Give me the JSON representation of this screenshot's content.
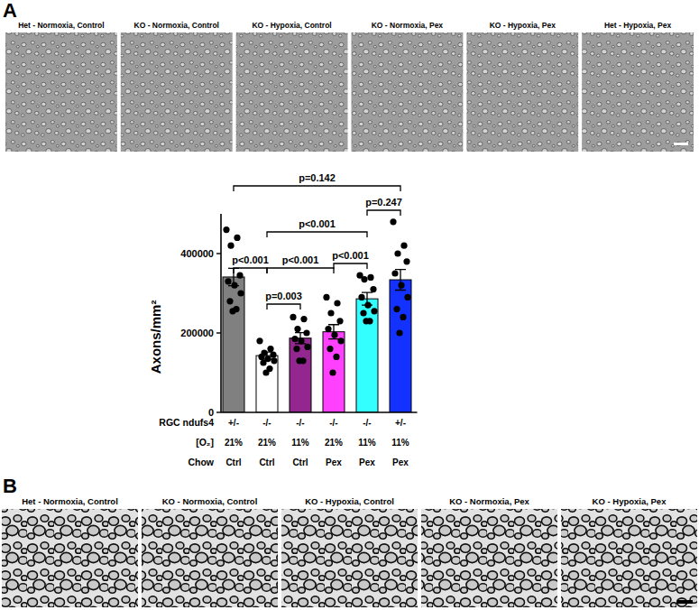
{
  "panel_a": {
    "label": "A",
    "image_titles": [
      "Het - Normoxia, Control",
      "KO - Normoxia, Control",
      "KO - Hypoxia, Control",
      "KO - Normoxia, Pex",
      "KO - Hypoxia, Pex",
      "Het - Hypoxia, Pex"
    ]
  },
  "chart_data": {
    "type": "bar",
    "y_label": "Axons/mm²",
    "categories": [
      null,
      null,
      null,
      null,
      null,
      null
    ],
    "values": [
      341000,
      143000,
      187000,
      203000,
      286000,
      334000
    ],
    "errors": [
      22000,
      9000,
      14000,
      18000,
      16000,
      26000
    ],
    "colors": [
      "#808080",
      "#ffffff",
      "#93278f",
      "#ff40ff",
      "#33ffff",
      "#1432ff"
    ],
    "points": [
      [
        460000,
        440000,
        420000,
        345000,
        330000,
        320000,
        300000,
        280000,
        260000,
        255000
      ],
      [
        180000,
        160000,
        150000,
        145000,
        140000,
        135000,
        130000,
        125000,
        110000,
        100000
      ],
      [
        240000,
        235000,
        210000,
        200000,
        185000,
        180000,
        165000,
        160000,
        130000,
        130000
      ],
      [
        290000,
        275000,
        250000,
        230000,
        210000,
        195000,
        180000,
        160000,
        140000,
        100000
      ],
      [
        345000,
        340000,
        335000,
        310000,
        290000,
        270000,
        255000,
        250000,
        230000,
        230000
      ],
      [
        480000,
        420000,
        400000,
        380000,
        350000,
        320000,
        290000,
        260000,
        240000,
        200000
      ]
    ],
    "ylim": [
      0,
      500000
    ],
    "yticks": [
      0,
      200000,
      400000
    ],
    "condition_table": [
      {
        "label": "RGC ndufs4",
        "values": [
          "+/-",
          "-/-",
          "-/-",
          "-/-",
          "-/-",
          "+/-"
        ]
      },
      {
        "label": "[O₂]",
        "values": [
          "21%",
          "21%",
          "11%",
          "21%",
          "11%",
          "11%"
        ]
      },
      {
        "label": "Chow",
        "values": [
          "Ctrl",
          "Ctrl",
          "Ctrl",
          "Pex",
          "Pex",
          "Pex"
        ]
      }
    ],
    "comparisons": [
      {
        "groups": [
          0,
          5
        ],
        "label": "p=0.142"
      },
      {
        "groups": [
          4,
          5
        ],
        "label": "p=0.247"
      },
      {
        "groups": [
          1,
          4
        ],
        "label": "p<0.001"
      },
      {
        "groups": [
          0,
          1
        ],
        "label": "p<0.001"
      },
      {
        "groups": [
          1,
          3
        ],
        "label": "p<0.001"
      },
      {
        "groups": [
          3,
          4
        ],
        "label": "p<0.001"
      },
      {
        "groups": [
          1,
          2
        ],
        "label": "p=0.003"
      }
    ]
  },
  "panel_b": {
    "label": "B",
    "image_titles": [
      "Het - Normoxia, Control",
      "KO - Normoxia, Control",
      "KO - Hypoxia, Control",
      "KO - Normoxia, Pex",
      "KO - Hypoxia, Pex"
    ]
  }
}
